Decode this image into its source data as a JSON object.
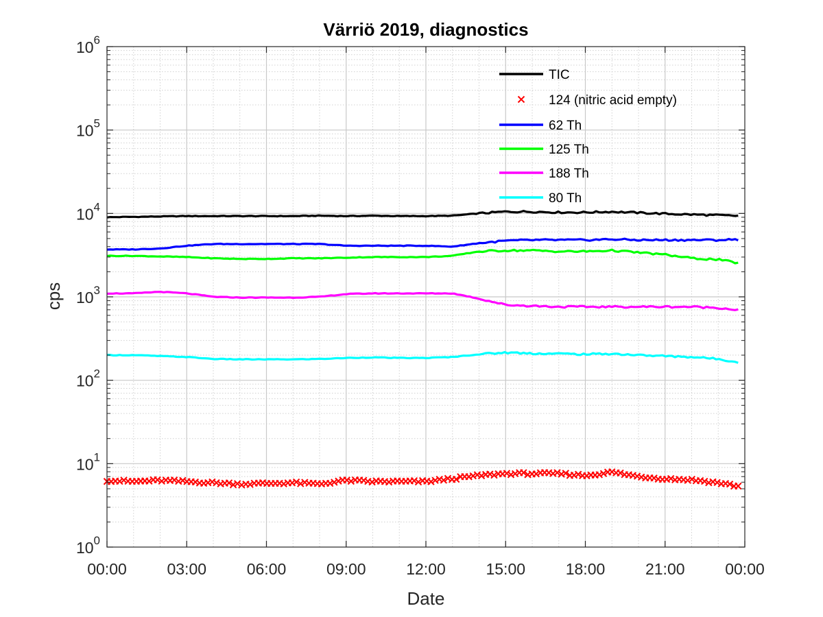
{
  "chart_data": {
    "type": "line",
    "title": "Värriö 2019, diagnostics",
    "xlabel": "Date",
    "ylabel": "cps",
    "yscale": "log",
    "ylim": [
      1,
      1000000
    ],
    "xlim_hours": [
      0,
      24
    ],
    "x_tick_labels": [
      "00:00",
      "03:00",
      "06:00",
      "09:00",
      "12:00",
      "15:00",
      "18:00",
      "21:00",
      "00:00"
    ],
    "y_tick_values": [
      1,
      10,
      100,
      1000,
      10000,
      100000,
      1000000
    ],
    "y_tick_labels": [
      "10^0",
      "10^1",
      "10^2",
      "10^3",
      "10^4",
      "10^5",
      "10^6"
    ],
    "grid": true,
    "minor_grid": true,
    "legend_position": "top-right",
    "x_hours": [
      0,
      1,
      2,
      3,
      4,
      5,
      6,
      7,
      8,
      9,
      10,
      11,
      12,
      13,
      14,
      15,
      16,
      17,
      18,
      19,
      20,
      21,
      22,
      23,
      24
    ],
    "series": [
      {
        "name": "TIC",
        "color": "#000000",
        "marker": "line",
        "values": [
          9000,
          9100,
          9200,
          9300,
          9300,
          9300,
          9300,
          9300,
          9400,
          9300,
          9400,
          9300,
          9300,
          9400,
          10000,
          10500,
          10500,
          10300,
          10300,
          10500,
          10200,
          9900,
          9700,
          9500,
          9300
        ]
      },
      {
        "name": "124 (nitric acid empty)",
        "color": "#ff0000",
        "marker": "x",
        "values": [
          6.3,
          6.1,
          6.3,
          6.1,
          5.9,
          5.7,
          5.8,
          5.9,
          5.7,
          6.3,
          6.1,
          6.1,
          6.1,
          6.6,
          7.2,
          7.6,
          7.6,
          7.6,
          7.2,
          7.9,
          7.0,
          6.6,
          6.4,
          5.9,
          5.2
        ]
      },
      {
        "name": "62 Th",
        "color": "#0000ff",
        "marker": "line",
        "values": [
          3700,
          3700,
          3800,
          4100,
          4300,
          4300,
          4300,
          4300,
          4300,
          4100,
          4100,
          4100,
          4100,
          4000,
          4400,
          4700,
          4800,
          4800,
          4800,
          4900,
          4800,
          4800,
          4800,
          4800,
          4900
        ]
      },
      {
        "name": "125 Th",
        "color": "#00ff00",
        "marker": "line",
        "values": [
          3100,
          3100,
          3050,
          3000,
          2900,
          2850,
          2850,
          2900,
          2900,
          2950,
          3000,
          3000,
          3000,
          3100,
          3500,
          3600,
          3600,
          3500,
          3500,
          3600,
          3400,
          3200,
          2900,
          2800,
          2450
        ]
      },
      {
        "name": "188 Th",
        "color": "#ff00ff",
        "marker": "line",
        "values": [
          1100,
          1100,
          1150,
          1100,
          1000,
          980,
          980,
          980,
          1000,
          1080,
          1100,
          1100,
          1100,
          1100,
          950,
          800,
          780,
          760,
          760,
          760,
          760,
          760,
          760,
          740,
          680
        ]
      },
      {
        "name": "80 Th",
        "color": "#00ffff",
        "marker": "line",
        "values": [
          200,
          200,
          195,
          190,
          180,
          178,
          178,
          178,
          180,
          185,
          188,
          185,
          185,
          190,
          205,
          215,
          210,
          208,
          205,
          208,
          200,
          195,
          190,
          180,
          160
        ]
      }
    ]
  }
}
